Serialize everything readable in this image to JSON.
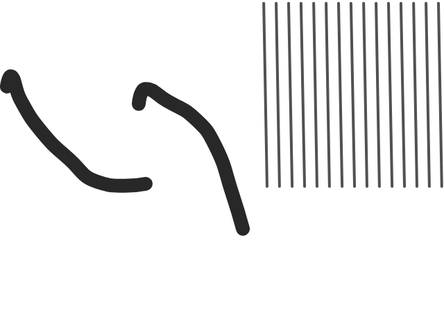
{
  "chart_data": {
    "type": "line",
    "tick_labels": false,
    "grid": false,
    "xlim": [
      0,
      2
    ],
    "ylim": [
      0,
      10
    ],
    "series": [
      {
        "color": "#111111",
        "x": [
          0.031,
          0.047,
          0.094,
          0.188,
          0.313,
          0.438,
          0.563,
          0.656
        ],
        "values": [
          7.4,
          7.71,
          6.98,
          6.04,
          5.21,
          4.54,
          4.42,
          4.48
        ]
      },
      {
        "color": "#111111",
        "x": [
          0.625,
          0.656,
          0.75,
          0.875,
          0.969,
          1.047,
          1.094
        ],
        "values": [
          6.88,
          7.33,
          6.98,
          6.46,
          5.63,
          4.17,
          3.13
        ]
      },
      {
        "color": "#333333",
        "x": [
          1.188,
          1.203
        ],
        "values": [
          9.9,
          4.4
        ]
      },
      {
        "color": "#333333",
        "x": [
          1.244,
          1.259
        ],
        "values": [
          9.9,
          4.4
        ]
      },
      {
        "color": "#333333",
        "x": [
          1.3,
          1.316
        ],
        "values": [
          9.9,
          4.4
        ]
      },
      {
        "color": "#333333",
        "x": [
          1.356,
          1.372
        ],
        "values": [
          9.9,
          4.4
        ]
      },
      {
        "color": "#333333",
        "x": [
          1.413,
          1.428
        ],
        "values": [
          9.9,
          4.4
        ]
      },
      {
        "color": "#333333",
        "x": [
          1.469,
          1.484
        ],
        "values": [
          9.9,
          4.4
        ]
      },
      {
        "color": "#333333",
        "x": [
          1.525,
          1.541
        ],
        "values": [
          9.9,
          4.4
        ]
      },
      {
        "color": "#333333",
        "x": [
          1.581,
          1.597
        ],
        "values": [
          9.9,
          4.4
        ]
      },
      {
        "color": "#333333",
        "x": [
          1.638,
          1.653
        ],
        "values": [
          9.9,
          4.4
        ]
      },
      {
        "color": "#333333",
        "x": [
          1.694,
          1.709
        ],
        "values": [
          9.9,
          4.4
        ]
      },
      {
        "color": "#333333",
        "x": [
          1.75,
          1.766
        ],
        "values": [
          9.9,
          4.4
        ]
      },
      {
        "color": "#333333",
        "x": [
          1.806,
          1.822
        ],
        "values": [
          9.9,
          4.4
        ]
      },
      {
        "color": "#333333",
        "x": [
          1.863,
          1.878
        ],
        "values": [
          9.9,
          4.4
        ]
      },
      {
        "color": "#333333",
        "x": [
          1.919,
          1.934
        ],
        "values": [
          9.9,
          4.4
        ]
      },
      {
        "color": "#333333",
        "x": [
          1.975,
          1.99
        ],
        "values": [
          9.9,
          4.4
        ]
      }
    ]
  }
}
